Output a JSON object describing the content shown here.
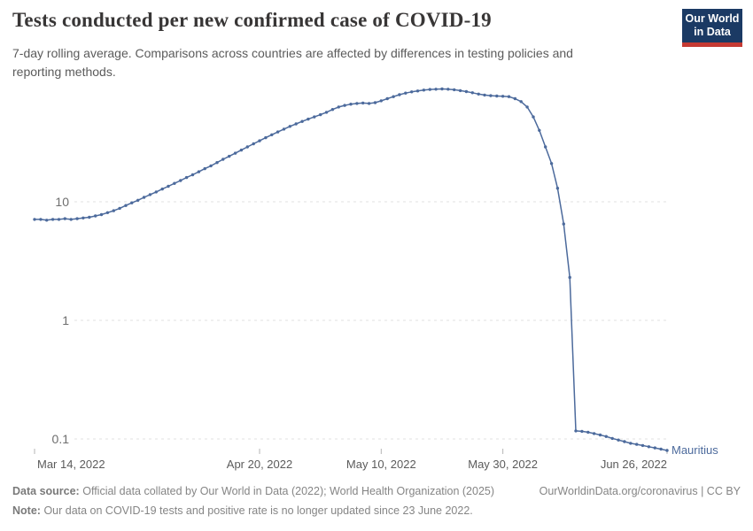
{
  "header": {
    "title": "Tests conducted per new confirmed case of COVID-19",
    "subtitle": "7-day rolling average. Comparisons across countries are affected by differences in testing policies and reporting methods.",
    "logo": {
      "line1": "Our World",
      "line2": "in Data",
      "bg_color": "#1b3a64",
      "stripe_color": "#c53a33"
    }
  },
  "chart_data": {
    "type": "line",
    "title": "Tests conducted per new confirmed case of COVID-19",
    "yscale": "log",
    "ylim": [
      0.07,
      100
    ],
    "grid": true,
    "grid_color": "#e0e0e0",
    "axis_text_color": "#6e6e6e",
    "x_text_color": "#5b5b5b",
    "yticks": [
      {
        "value": 10,
        "label": "10"
      },
      {
        "value": 1,
        "label": "1"
      },
      {
        "value": 0.1,
        "label": "0.1"
      }
    ],
    "xticks": [
      {
        "label": "Mar 14, 2022",
        "date": "2022-03-14",
        "align": "start"
      },
      {
        "label": "Apr 20, 2022",
        "date": "2022-04-20",
        "align": "middle"
      },
      {
        "label": "May 10, 2022",
        "date": "2022-05-10",
        "align": "middle"
      },
      {
        "label": "May 30, 2022",
        "date": "2022-05-30",
        "align": "middle"
      },
      {
        "label": "Jun 26, 2022",
        "date": "2022-06-26",
        "align": "end"
      }
    ],
    "series": [
      {
        "name": "Mauritius",
        "color": "#4c6a9c",
        "cadence": "daily",
        "start_date": "2022-03-14",
        "end_date": "2022-06-26",
        "values": [
          7.1,
          7.1,
          7.0,
          7.1,
          7.1,
          7.2,
          7.1,
          7.2,
          7.3,
          7.4,
          7.6,
          7.8,
          8.1,
          8.4,
          8.8,
          9.3,
          9.8,
          10.3,
          10.9,
          11.5,
          12.1,
          12.8,
          13.5,
          14.3,
          15.1,
          16.0,
          16.9,
          17.9,
          19.0,
          20.1,
          21.4,
          22.8,
          24.2,
          25.7,
          27.3,
          29.0,
          30.8,
          32.7,
          34.7,
          36.7,
          38.8,
          41.0,
          43.2,
          45.4,
          47.6,
          49.8,
          52.0,
          54.2,
          56.8,
          60.0,
          63.0,
          65.0,
          66.5,
          67.5,
          68.0,
          67.5,
          68.5,
          71.0,
          74.0,
          77.0,
          80.0,
          82.5,
          84.5,
          86.0,
          87.5,
          88.5,
          89.0,
          89.5,
          89.0,
          88.0,
          86.5,
          85.0,
          83.0,
          81.0,
          79.5,
          78.5,
          78.0,
          77.5,
          77.0,
          74.0,
          70.0,
          63.0,
          52.0,
          40.0,
          29.0,
          21.0,
          13.0,
          6.5,
          2.3,
          0.117,
          0.116,
          0.114,
          0.111,
          0.108,
          0.105,
          0.101,
          0.098,
          0.095,
          0.092,
          0.09,
          0.088,
          0.086,
          0.084,
          0.082,
          0.08
        ]
      }
    ]
  },
  "footer": {
    "data_source_label": "Data source:",
    "data_source_text": "Official data collated by Our World in Data (2022); World Health Organization (2025)",
    "link_text": "OurWorldinData.org/coronavirus | CC BY",
    "note_label": "Note:",
    "note_text": "Our data on COVID-19 tests and positive rate is no longer updated since 23 June 2022."
  }
}
